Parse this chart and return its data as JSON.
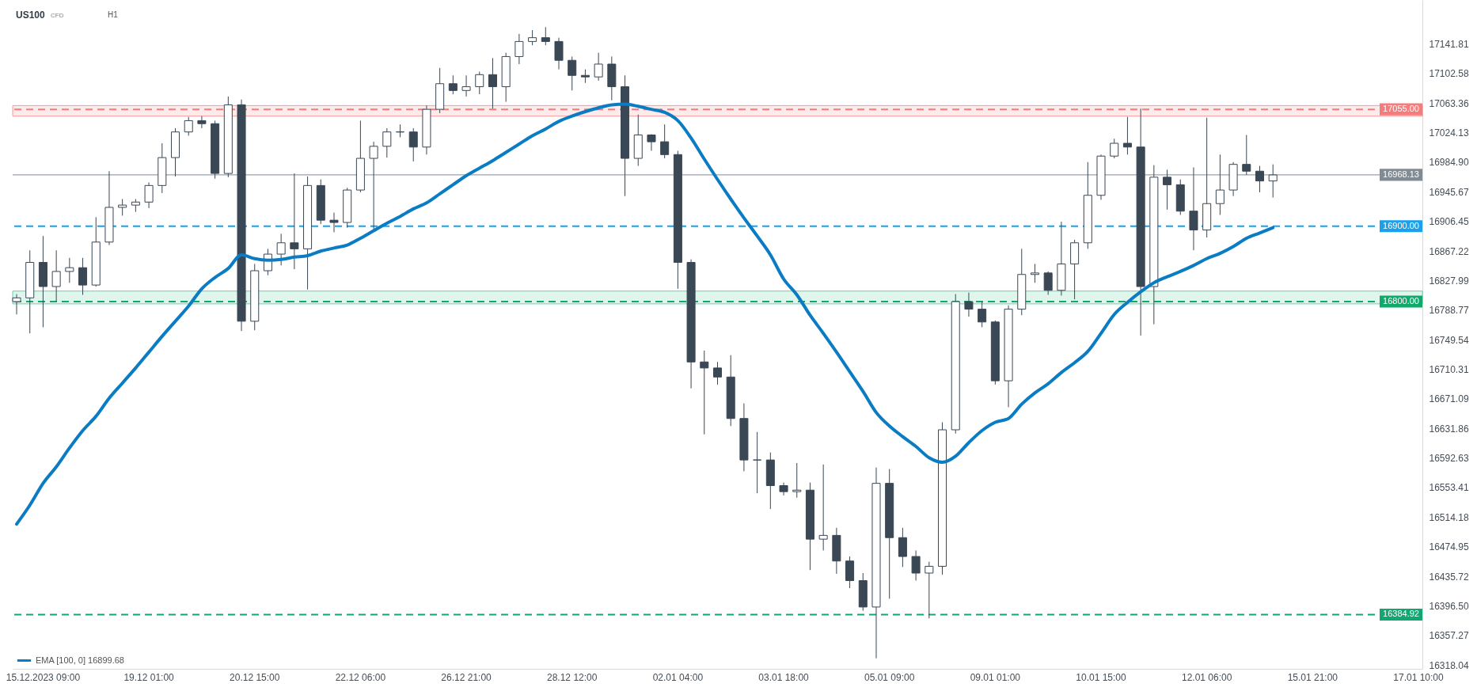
{
  "chart_data": {
    "type": "candlestick",
    "title": "US100",
    "subtitle": "CFD",
    "annotations": [
      "H1"
    ],
    "categories": [
      null,
      null,
      "15.12.2023 09:00",
      null,
      null,
      null,
      null,
      null,
      null,
      null,
      "19.12 01:00",
      null,
      null,
      null,
      null,
      null,
      null,
      null,
      "20.12 15:00",
      null,
      null,
      null,
      null,
      null,
      null,
      null,
      "22.12 06:00",
      null,
      null,
      null,
      null,
      null,
      null,
      null,
      "26.12 21:00",
      null,
      null,
      null,
      null,
      null,
      null,
      null,
      "28.12 12:00",
      null,
      null,
      null,
      null,
      null,
      null,
      null,
      "02.01 04:00",
      null,
      null,
      null,
      null,
      null,
      null,
      null,
      "03.01 18:00",
      null,
      null,
      null,
      null,
      null,
      null,
      null,
      "05.01 09:00",
      null,
      null,
      null,
      null,
      null,
      null,
      null,
      "09.01 01:00",
      null,
      null,
      null,
      null,
      null,
      null,
      null,
      "10.01 15:00",
      null,
      null,
      null,
      null,
      null,
      null,
      null,
      "12.01 06:00",
      null,
      null,
      null,
      null,
      null,
      null,
      null,
      "15.01 21:00",
      null,
      null,
      null,
      null,
      null,
      null,
      null,
      "17.01 10:00"
    ],
    "ohlc": [
      [
        16800,
        16810,
        16783,
        16805
      ],
      [
        16805,
        16868,
        16758,
        16852
      ],
      [
        16852,
        16887,
        16766,
        16820
      ],
      [
        16820,
        16868,
        16800,
        16840
      ],
      [
        16840,
        16858,
        16825,
        16845
      ],
      [
        16845,
        16858,
        16809,
        16822
      ],
      [
        16822,
        16912,
        16820,
        16879
      ],
      [
        16879,
        16973,
        16875,
        16925
      ],
      [
        16925,
        16936,
        16914,
        16928
      ],
      [
        16928,
        16936,
        16919,
        16932
      ],
      [
        16932,
        16958,
        16924,
        16954
      ],
      [
        16954,
        17010,
        16944,
        16991
      ],
      [
        16991,
        17030,
        16966,
        17025
      ],
      [
        17025,
        17045,
        17020,
        17040
      ],
      [
        17040,
        17046,
        17030,
        17036
      ],
      [
        17036,
        17040,
        16963,
        16970
      ],
      [
        16970,
        17072,
        16965,
        17061
      ],
      [
        17061,
        17068,
        16761,
        16774
      ],
      [
        16774,
        16850,
        16762,
        16841
      ],
      [
        16841,
        16870,
        16835,
        16863
      ],
      [
        16863,
        16890,
        16848,
        16878
      ],
      [
        16878,
        16970,
        16843,
        16870
      ],
      [
        16870,
        16966,
        16816,
        16954
      ],
      [
        16954,
        16962,
        16903,
        16908
      ],
      [
        16908,
        16918,
        16892,
        16905
      ],
      [
        16905,
        16951,
        16898,
        16948
      ],
      [
        16948,
        17040,
        16945,
        16990
      ],
      [
        16990,
        17012,
        16895,
        17006
      ],
      [
        17006,
        17030,
        16991,
        17025
      ],
      [
        17025,
        17035,
        17018,
        17025
      ],
      [
        17025,
        17030,
        16986,
        17005
      ],
      [
        17005,
        17060,
        16995,
        17055
      ],
      [
        17055,
        17110,
        17050,
        17089
      ],
      [
        17089,
        17100,
        17075,
        17080
      ],
      [
        17080,
        17100,
        17072,
        17085
      ],
      [
        17085,
        17105,
        17075,
        17101
      ],
      [
        17101,
        17123,
        17056,
        17085
      ],
      [
        17085,
        17130,
        17065,
        17125
      ],
      [
        17125,
        17155,
        17115,
        17145
      ],
      [
        17145,
        17160,
        17140,
        17150
      ],
      [
        17150,
        17164,
        17140,
        17145
      ],
      [
        17145,
        17150,
        17108,
        17120
      ],
      [
        17120,
        17125,
        17080,
        17100
      ],
      [
        17100,
        17108,
        17090,
        17098
      ],
      [
        17098,
        17130,
        17093,
        17115
      ],
      [
        17115,
        17125,
        17067,
        17085
      ],
      [
        17085,
        17100,
        16940,
        16990
      ],
      [
        16990,
        17048,
        16980,
        17021
      ],
      [
        17021,
        17022,
        17000,
        17012
      ],
      [
        17012,
        17035,
        16990,
        16995
      ],
      [
        16995,
        17000,
        16817,
        16852
      ],
      [
        16852,
        16856,
        16685,
        16720
      ],
      [
        16720,
        16735,
        16624,
        16712
      ],
      [
        16712,
        16720,
        16690,
        16700
      ],
      [
        16700,
        16729,
        16635,
        16645
      ],
      [
        16645,
        16665,
        16575,
        16590
      ],
      [
        16590,
        16627,
        16546,
        16590
      ],
      [
        16590,
        16600,
        16525,
        16556
      ],
      [
        16556,
        16560,
        16543,
        16548
      ],
      [
        16548,
        16586,
        16540,
        16550
      ],
      [
        16550,
        16560,
        16444,
        16485
      ],
      [
        16485,
        16584,
        16470,
        16490
      ],
      [
        16490,
        16500,
        16439,
        16456
      ],
      [
        16456,
        16462,
        16420,
        16430
      ],
      [
        16430,
        16440,
        16390,
        16395
      ],
      [
        16395,
        16580,
        16327,
        16559
      ],
      [
        16559,
        16578,
        16406,
        16487
      ],
      [
        16487,
        16500,
        16448,
        16462
      ],
      [
        16462,
        16470,
        16430,
        16440
      ],
      [
        16440,
        16455,
        16380,
        16449
      ],
      [
        16449,
        16640,
        16438,
        16630
      ],
      [
        16630,
        16810,
        16625,
        16800
      ],
      [
        16800,
        16812,
        16780,
        16790
      ],
      [
        16790,
        16800,
        16766,
        16773
      ],
      [
        16773,
        16775,
        16690,
        16695
      ],
      [
        16695,
        16795,
        16660,
        16790
      ],
      [
        16790,
        16870,
        16782,
        16836
      ],
      [
        16836,
        16850,
        16825,
        16838
      ],
      [
        16838,
        16840,
        16809,
        16815
      ],
      [
        16815,
        16906,
        16808,
        16850
      ],
      [
        16850,
        16882,
        16803,
        16878
      ],
      [
        16878,
        16985,
        16870,
        16941
      ],
      [
        16941,
        16995,
        16935,
        16993
      ],
      [
        16993,
        17016,
        16990,
        17010
      ],
      [
        17010,
        17045,
        16995,
        17005
      ],
      [
        17005,
        17056,
        16755,
        16820
      ],
      [
        16820,
        16981,
        16770,
        16965
      ],
      [
        16965,
        16975,
        16922,
        16955
      ],
      [
        16955,
        16962,
        16915,
        16920
      ],
      [
        16920,
        16978,
        16868,
        16895
      ],
      [
        16895,
        17044,
        16885,
        16930
      ],
      [
        16930,
        16995,
        16915,
        16948
      ],
      [
        16948,
        16985,
        16940,
        16982
      ],
      [
        16982,
        17021,
        16968,
        16973
      ],
      [
        16973,
        16980,
        16945,
        16960
      ],
      [
        16960,
        16982,
        16938,
        16968
      ],
      null,
      null,
      null,
      null,
      null,
      null,
      null,
      null,
      null,
      null,
      null
    ],
    "color": "#3a4754",
    "series": [
      {
        "type": "line",
        "name": "EMA [100, 0] 16899.68",
        "color": "#0a7cc4",
        "values": [
          16505,
          16530,
          16559,
          16581,
          16606,
          16629,
          16648,
          16672,
          16692,
          16712,
          16733,
          16754,
          16774,
          16794,
          16817,
          16832,
          16844,
          16862,
          16857,
          16855,
          16856,
          16859,
          16861,
          16867,
          16871,
          16875,
          16884,
          16894,
          16904,
          16913,
          16923,
          16931,
          16943,
          16955,
          16967,
          16977,
          16987,
          16998,
          17009,
          17020,
          17029,
          17039,
          17046,
          17052,
          17057,
          17061,
          17062,
          17059,
          17055,
          17051,
          17040,
          17017,
          16989,
          16962,
          16936,
          16911,
          16887,
          16862,
          16830,
          16809,
          16782,
          16758,
          16733,
          16707,
          16681,
          16653,
          16635,
          16621,
          16608,
          16593,
          16587,
          16595,
          16613,
          16629,
          16640,
          16645,
          16664,
          16679,
          16691,
          16706,
          16719,
          16734,
          16758,
          16783,
          16799,
          16813,
          16825,
          16833,
          16840,
          16848,
          16857,
          16864,
          16873,
          16884,
          16891,
          16898,
          null,
          null,
          null,
          null,
          null,
          null,
          null,
          null,
          null,
          null,
          null
        ]
      }
    ],
    "ylim": [
      16313,
      17200
    ],
    "yticks": [
      17141.81,
      17102.58,
      17063.36,
      17024.13,
      {
        "value": 16984.9,
        "label": "16984.90"
      },
      16945.67,
      16906.45,
      16867.22,
      16827.99,
      16788.77,
      16749.54,
      16710.31,
      16671.09,
      16631.86,
      16592.63,
      16553.41,
      16514.18,
      16474.95,
      16435.72,
      {
        "value": 16396.5,
        "label": "16396.50"
      },
      16357.27,
      16318.04
    ],
    "ref_lines": [
      {
        "axis": "y",
        "value": 17055,
        "label": "17055.00",
        "color": "#f47c7c",
        "line_style": "dashed"
      },
      {
        "axis": "y",
        "value": 16968.13,
        "label": "16968.13",
        "color": "#808b94",
        "line_style": "solid"
      },
      {
        "axis": "y",
        "value": 16900,
        "label": "16900.00",
        "color": "#1ba1ec",
        "line_style": "dashed"
      },
      {
        "axis": "y",
        "value": 16800,
        "label": "16800.00",
        "color": "#0fa96c",
        "line_style": "dashed"
      },
      {
        "axis": "y",
        "value": 16384.92,
        "label": "16384.92",
        "color": "#12a673",
        "line_style": "dashed"
      }
    ],
    "bands": [
      {
        "axis": "y",
        "from": 17046,
        "to": 17060,
        "color": "#f47c7c"
      },
      {
        "axis": "y",
        "from": 16797,
        "to": 16814,
        "color": "#3cc48f"
      }
    ],
    "legend": "bottom left"
  }
}
